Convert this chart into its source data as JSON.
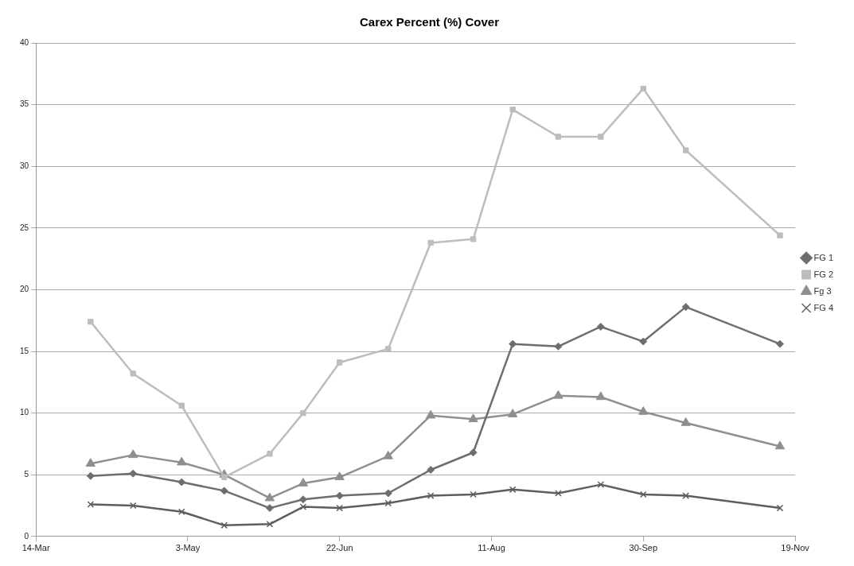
{
  "chart_data": {
    "type": "line",
    "title": "Carex Percent (%) Cover",
    "x": [
      "--04-01",
      "--04-15",
      "--05-01",
      "--05-15",
      "--05-30",
      "--06-10",
      "--06-22",
      "--07-08",
      "--07-22",
      "--08-05",
      "--08-18",
      "--09-02",
      "--09-16",
      "--09-30",
      "--10-14",
      "--11-14"
    ],
    "series": [
      {
        "name": "FG 1",
        "color": "#6e6e6e",
        "marker": "diamond",
        "values": [
          4.9,
          5.1,
          4.4,
          3.7,
          2.3,
          3.0,
          3.3,
          3.5,
          5.4,
          6.8,
          15.6,
          15.4,
          17.0,
          15.8,
          18.6,
          15.6
        ]
      },
      {
        "name": "FG 2",
        "color": "#bdbdbd",
        "marker": "square",
        "values": [
          17.4,
          13.2,
          10.6,
          4.8,
          6.7,
          10.0,
          14.1,
          15.2,
          23.8,
          24.1,
          34.6,
          32.4,
          32.4,
          36.3,
          31.3,
          24.4
        ]
      },
      {
        "name": "Fg 3",
        "color": "#8f8f8f",
        "marker": "triangle",
        "values": [
          5.9,
          6.6,
          6.0,
          5.0,
          3.1,
          4.3,
          4.8,
          6.5,
          9.8,
          9.5,
          9.9,
          11.4,
          11.3,
          10.1,
          9.2,
          7.3
        ]
      },
      {
        "name": "FG 4",
        "color": "#5e5e5e",
        "marker": "cross",
        "values": [
          2.6,
          2.5,
          2.0,
          0.9,
          1.0,
          2.4,
          2.3,
          2.7,
          3.3,
          3.4,
          3.8,
          3.5,
          4.2,
          3.4,
          3.3,
          2.3
        ]
      }
    ],
    "xlim": [
      "--03-14",
      "--11-19"
    ],
    "xticks": [
      {
        "value": "--03-14",
        "label": "14-Mar"
      },
      {
        "value": "--05-03",
        "label": "3-May"
      },
      {
        "value": "--06-22",
        "label": "22-Jun"
      },
      {
        "value": "--08-11",
        "label": "11-Aug"
      },
      {
        "value": "--09-30",
        "label": "30-Sep"
      },
      {
        "value": "--11-19",
        "label": "19-Nov"
      }
    ],
    "ylim": [
      0,
      40
    ],
    "yticks": [
      0,
      5,
      10,
      15,
      20,
      25,
      30,
      35,
      40
    ],
    "grid": "y",
    "legend": "right",
    "line_style": "solid"
  }
}
